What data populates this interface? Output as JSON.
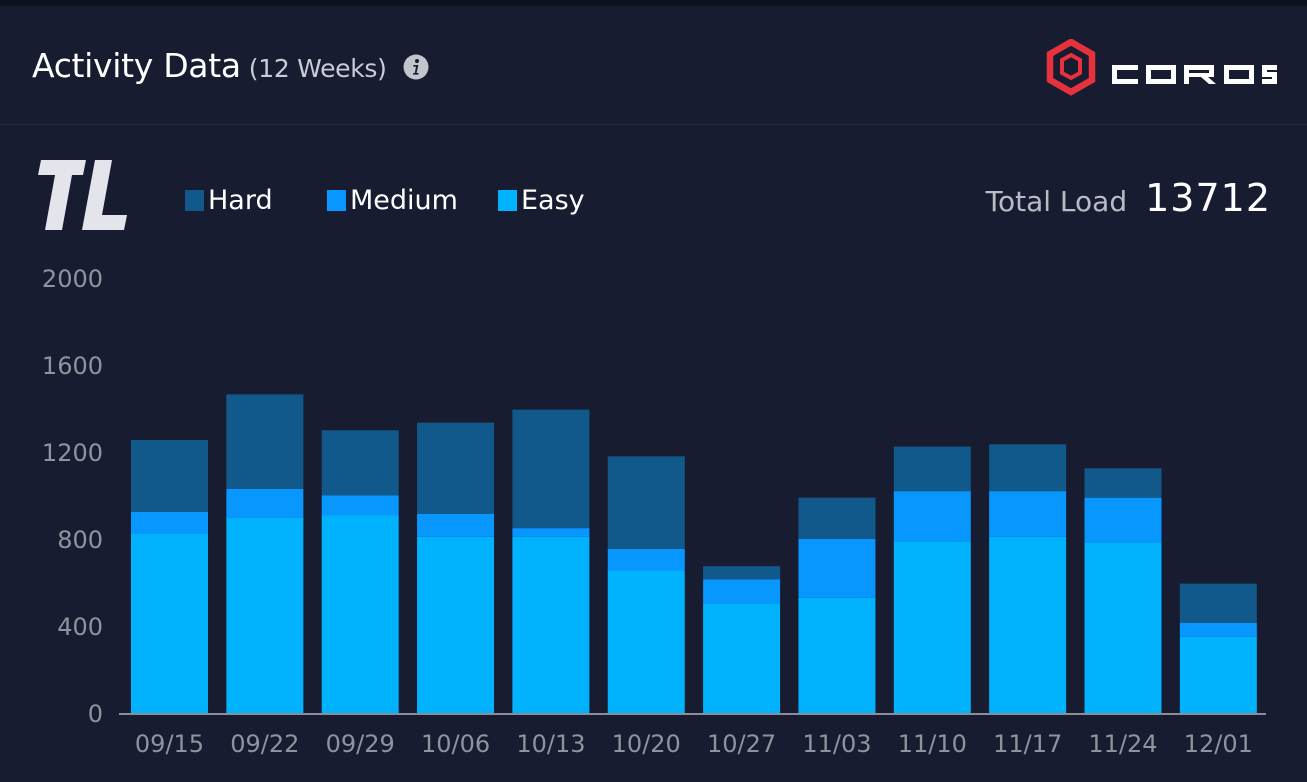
{
  "header": {
    "title": "Activity Data",
    "subtitle": "(12 Weeks)",
    "info_icon": "info-circle-icon",
    "brand_name": "COROS",
    "brand_color": "#e5323c"
  },
  "summary": {
    "metric_badge": "TL",
    "total_label": "Total Load",
    "total_value": "13712"
  },
  "legend": [
    {
      "label": "Hard",
      "color": "#11598a"
    },
    {
      "label": "Medium",
      "color": "#0896ff"
    },
    {
      "label": "Easy",
      "color": "#01b2ff"
    }
  ],
  "chart_data": {
    "type": "bar",
    "stacked": true,
    "categories": [
      "09/15",
      "09/22",
      "09/29",
      "10/06",
      "10/13",
      "10/20",
      "10/27",
      "11/03",
      "11/10",
      "11/17",
      "11/24",
      "12/01"
    ],
    "series": [
      {
        "name": "Easy",
        "color": "#01b2ff",
        "values": [
          825,
          900,
          910,
          810,
          810,
          655,
          505,
          530,
          790,
          810,
          785,
          350
        ]
      },
      {
        "name": "Medium",
        "color": "#0896ff",
        "values": [
          100,
          130,
          90,
          105,
          40,
          100,
          110,
          270,
          230,
          210,
          205,
          65
        ]
      },
      {
        "name": "Hard",
        "color": "#11598a",
        "values": [
          330,
          435,
          300,
          420,
          545,
          425,
          60,
          190,
          205,
          215,
          135,
          180
        ]
      }
    ],
    "ylim": [
      0,
      2000
    ],
    "yticks": [
      0,
      400,
      800,
      1200,
      1600,
      2000
    ],
    "grid": false,
    "legend_position": "top-left"
  }
}
